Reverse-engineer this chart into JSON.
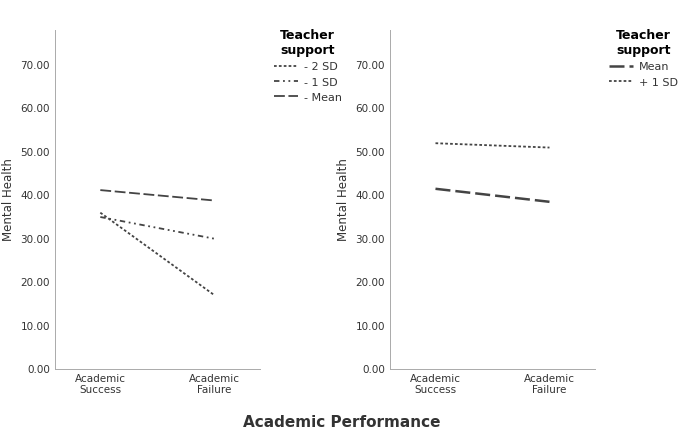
{
  "left_graph": {
    "ylabel": "Mental Health",
    "yticks": [
      0.0,
      10.0,
      20.0,
      30.0,
      40.0,
      50.0,
      60.0,
      70.0
    ],
    "ylim": [
      0,
      78
    ],
    "xtick_labels": [
      "Academic\nSuccess",
      "Academic\nFailure"
    ],
    "lines": {
      "2SD": {
        "y": [
          36.0,
          17.0
        ],
        "label": "- 2 SD"
      },
      "1SD": {
        "y": [
          35.0,
          30.0
        ],
        "label": "- 1 SD"
      },
      "Mean": {
        "y": [
          41.2,
          38.8
        ],
        "label": "- Mean"
      }
    },
    "legend_title": "Teacher\nsupport"
  },
  "right_graph": {
    "ylabel": "Mental Health",
    "yticks": [
      0.0,
      10.0,
      20.0,
      30.0,
      40.0,
      50.0,
      60.0,
      70.0
    ],
    "ylim": [
      0,
      78
    ],
    "xtick_labels": [
      "Academic\nSuccess",
      "Academic\nFailure"
    ],
    "lines": {
      "Mean": {
        "y": [
          41.5,
          38.5
        ],
        "label": "Mean"
      },
      "plus1SD": {
        "y": [
          52.0,
          51.0
        ],
        "label": "+ 1 SD"
      }
    },
    "legend_title": "Teacher\nsupport"
  },
  "xlabel": "Academic Performance",
  "bg_color": "#ffffff",
  "line_color": "#444444",
  "text_color": "#333333",
  "tick_fontsize": 7.5,
  "label_fontsize": 8.5,
  "legend_fontsize": 8,
  "legend_title_fontsize": 9
}
